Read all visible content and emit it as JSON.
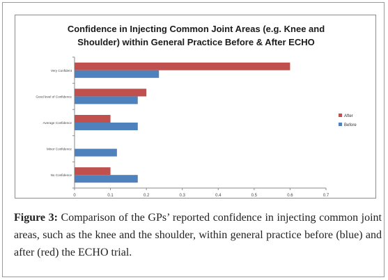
{
  "chart_data": {
    "type": "bar",
    "orientation": "horizontal",
    "title_lines": [
      "Confidence in Injecting Common Joint Areas (e.g. Knee and",
      "Shoulder) within General Practice Before & After ECHO"
    ],
    "categories": [
      "Very Confident",
      "Good level of Confidence",
      "Average Confidence",
      "Minor Confidence",
      "No Confidence"
    ],
    "series": [
      {
        "name": "After",
        "color": "#c0504d",
        "values": [
          0.6,
          0.2,
          0.1,
          0.0,
          0.1
        ]
      },
      {
        "name": "Before",
        "color": "#4f81bd",
        "values": [
          0.235,
          0.176,
          0.176,
          0.118,
          0.176
        ]
      }
    ],
    "xlim": [
      0,
      0.7
    ],
    "xticks": [
      "0",
      "0.1",
      "0.2",
      "0.3",
      "0.4",
      "0.5",
      "0.6",
      "0.7"
    ],
    "grid": false,
    "legend_position": "right"
  },
  "caption": {
    "label": "Figure 3:",
    "text": " Comparison of the GPs’ reported confidence in injecting common joint areas, such as the knee and the shoulder, within general practice before (blue) and after (red) the ECHO trial."
  }
}
